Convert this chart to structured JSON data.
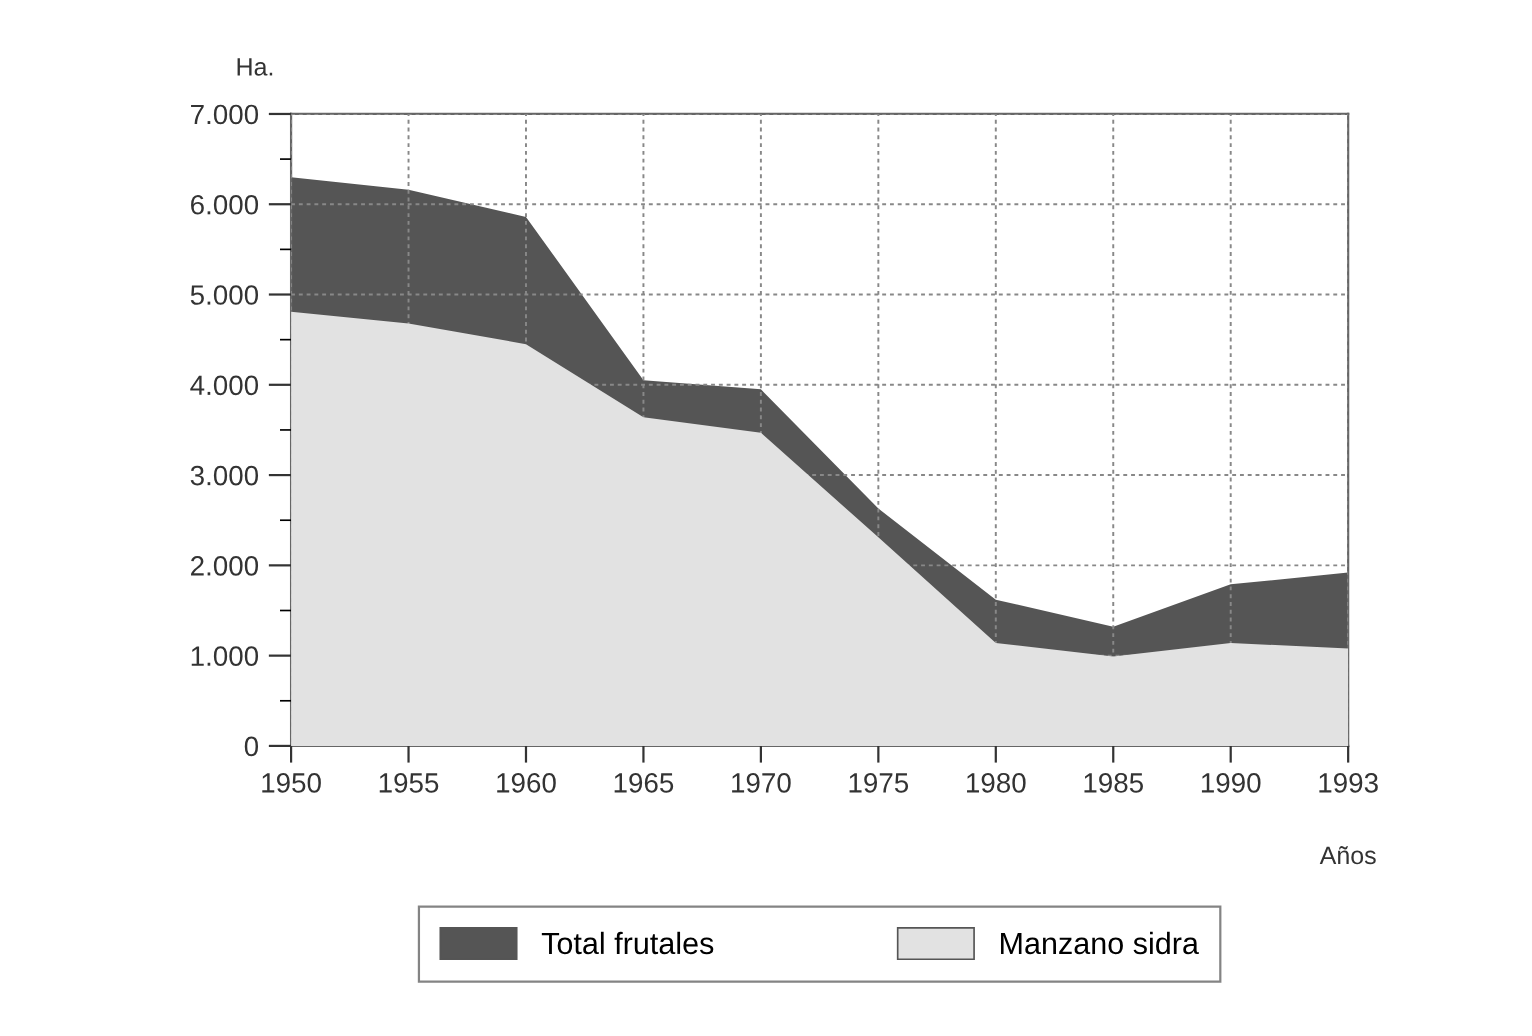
{
  "chart_data": {
    "type": "area",
    "ylabel": "Ha.",
    "xlabel": "Años",
    "categories": [
      "1950",
      "1955",
      "1960",
      "1965",
      "1970",
      "1975",
      "1980",
      "1985",
      "1990",
      "1993"
    ],
    "series": [
      {
        "name": "Total frutales",
        "color": "#555555",
        "values": [
          6300,
          6160,
          5860,
          4050,
          3950,
          2630,
          1620,
          1320,
          1790,
          1920
        ]
      },
      {
        "name": "Manzano sidra",
        "color": "#e2e2e2",
        "values": [
          4810,
          4680,
          4450,
          3640,
          3470,
          2310,
          1140,
          990,
          1140,
          1080
        ]
      }
    ],
    "ylim": [
      0,
      7000
    ],
    "yticks": [
      {
        "value": 0,
        "label": "0"
      },
      {
        "value": 1000,
        "label": "1.000"
      },
      {
        "value": 2000,
        "label": "2.000"
      },
      {
        "value": 3000,
        "label": "3.000"
      },
      {
        "value": 4000,
        "label": "4.000"
      },
      {
        "value": 5000,
        "label": "5.000"
      },
      {
        "value": 6000,
        "label": "6.000"
      },
      {
        "value": 7000,
        "label": "7.000"
      }
    ],
    "grid": true,
    "legend": "bottom"
  }
}
